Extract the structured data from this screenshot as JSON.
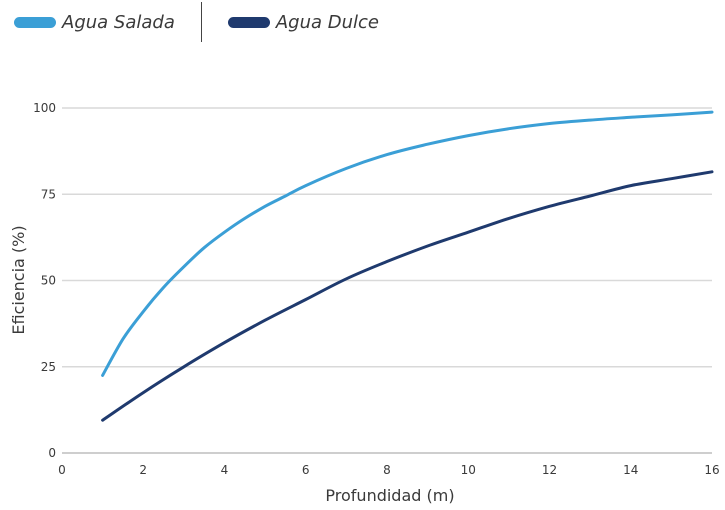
{
  "chart_data": {
    "type": "line",
    "xlabel": "Profundidad (m)",
    "ylabel": "Eficiencia (%)",
    "xlim": [
      0,
      16
    ],
    "ylim": [
      0,
      100
    ],
    "xticks": [
      0,
      2,
      4,
      6,
      8,
      10,
      12,
      14,
      16
    ],
    "yticks": [
      0,
      25,
      50,
      75,
      100
    ],
    "grid": "horizontal",
    "legend_position": "top-left",
    "series": [
      {
        "name": "Agua Salada",
        "color": "#3b9fd6",
        "x": [
          1,
          1.5,
          2,
          2.5,
          3,
          3.5,
          4,
          4.5,
          5,
          5.5,
          6,
          7,
          8,
          9,
          10,
          11,
          12,
          13,
          14,
          15,
          16
        ],
        "y": [
          22.5,
          33,
          41,
          48,
          54,
          59.5,
          64,
          68,
          71.5,
          74.5,
          77.5,
          82.5,
          86.5,
          89.5,
          92,
          94,
          95.5,
          96.5,
          97.3,
          98,
          98.8
        ]
      },
      {
        "name": "Agua Dulce",
        "color": "#1f3a6e",
        "x": [
          1,
          2,
          3,
          4,
          5,
          6,
          7,
          8,
          9,
          10,
          11,
          12,
          13,
          14,
          15,
          16
        ],
        "y": [
          9.5,
          17.5,
          25,
          32,
          38.5,
          44.5,
          50.5,
          55.5,
          60,
          64,
          68,
          71.5,
          74.5,
          77.5,
          79.5,
          81.5
        ]
      }
    ]
  }
}
